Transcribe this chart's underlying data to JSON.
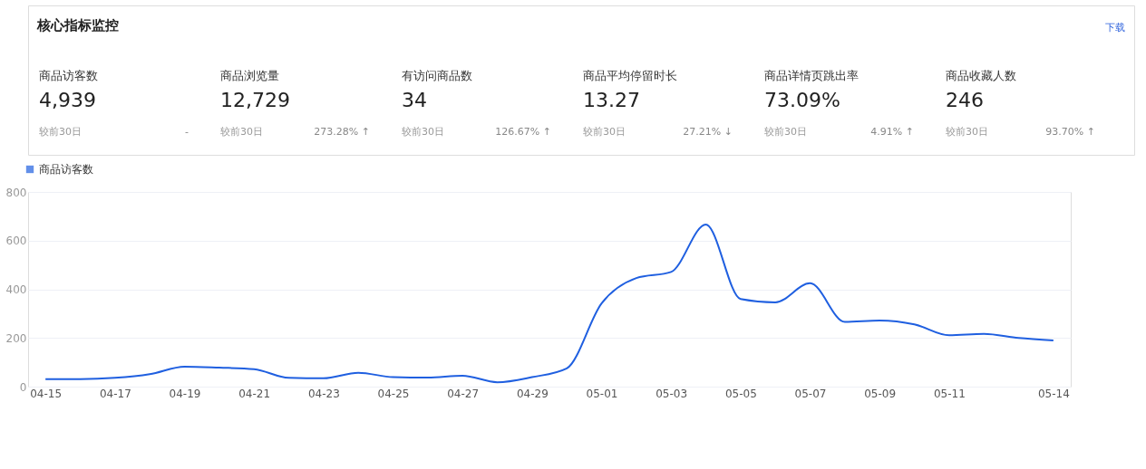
{
  "chart_data": [
    {
      "type": "other",
      "title": "核心指标监控",
      "annotations": [
        "商品访客数",
        "4,939",
        "较前30日",
        "-",
        "商品浏览量",
        "12,729",
        "较前30日",
        "273.28% ↑",
        "有访问商品数",
        "34",
        "较前30日",
        "126.67% ↑",
        "商品平均停留时长",
        "13.27",
        "较前30日",
        "27.21% ↓",
        "商品详情页跳出率",
        "73.09%",
        "较前30日",
        "4.91% ↑",
        "商品收藏人数",
        "246",
        "较前30日",
        "93.70% ↑",
        "下载"
      ]
    },
    {
      "type": "line",
      "categories": [
        "04-15",
        null,
        "04-17",
        null,
        "04-19",
        null,
        "04-21",
        null,
        "04-23",
        null,
        "04-25",
        null,
        "04-27",
        null,
        "04-29",
        null,
        "05-01",
        null,
        "05-03",
        null,
        "05-05",
        null,
        "05-07",
        null,
        "05-09",
        null,
        "05-11",
        null,
        null,
        "05-14"
      ],
      "series": [
        {
          "name": "商品访客数",
          "color": "#1f5fe0",
          "values": [
            31,
            31,
            36,
            51,
            82,
            78,
            72,
            36,
            34,
            57,
            39,
            37,
            45,
            18,
            39,
            75,
            342,
            446,
            471,
            666,
            360,
            346,
            425,
            266,
            272,
            256,
            211,
            217,
            200,
            190
          ]
        }
      ],
      "ylim": [
        0,
        800
      ],
      "yticks": [
        0,
        200,
        400,
        600,
        800
      ],
      "grid": "y",
      "legend": "top left",
      "marker": "none",
      "line_style": "solid"
    }
  ]
}
